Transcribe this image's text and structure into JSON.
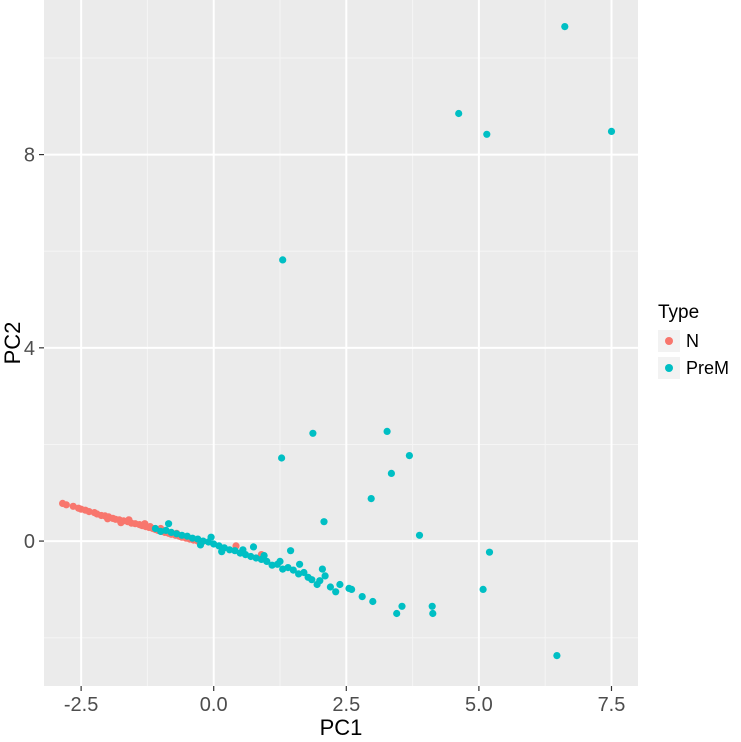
{
  "chart_data": {
    "type": "scatter",
    "title": "",
    "xlabel": "PC1",
    "ylabel": "PC2",
    "xlim": [
      -3.2,
      8.0
    ],
    "ylim": [
      -3.0,
      11.2
    ],
    "xticks": [
      -2.5,
      0.0,
      2.5,
      5.0,
      7.5
    ],
    "xtick_labels": [
      "-2.5",
      "0.0",
      "2.5",
      "5.0",
      "7.5"
    ],
    "yticks": [
      0,
      4,
      8
    ],
    "ytick_labels": [
      "0",
      "4",
      "8"
    ],
    "grid": true,
    "legend": {
      "title": "Type",
      "position": "right"
    },
    "series": [
      {
        "name": "N",
        "color": "#F8766D",
        "points": [
          [
            -2.85,
            0.78
          ],
          [
            -2.78,
            0.75
          ],
          [
            -2.65,
            0.72
          ],
          [
            -2.55,
            0.68
          ],
          [
            -2.5,
            0.66
          ],
          [
            -2.42,
            0.64
          ],
          [
            -2.35,
            0.61
          ],
          [
            -2.25,
            0.59
          ],
          [
            -2.2,
            0.56
          ],
          [
            -2.12,
            0.53
          ],
          [
            -2.05,
            0.52
          ],
          [
            -1.98,
            0.5
          ],
          [
            -1.9,
            0.47
          ],
          [
            -1.85,
            0.45
          ],
          [
            -1.78,
            0.44
          ],
          [
            -1.7,
            0.42
          ],
          [
            -1.62,
            0.4
          ],
          [
            -1.55,
            0.37
          ],
          [
            -1.48,
            0.36
          ],
          [
            -1.4,
            0.34
          ],
          [
            -1.35,
            0.32
          ],
          [
            -1.28,
            0.3
          ],
          [
            -1.22,
            0.28
          ],
          [
            -1.15,
            0.26
          ],
          [
            -1.1,
            0.24
          ],
          [
            -1.05,
            0.22
          ],
          [
            -0.98,
            0.2
          ],
          [
            -0.92,
            0.18
          ],
          [
            -0.85,
            0.16
          ],
          [
            -0.8,
            0.14
          ],
          [
            -0.72,
            0.12
          ],
          [
            -0.65,
            0.1
          ],
          [
            -0.6,
            0.08
          ],
          [
            -0.52,
            0.06
          ],
          [
            -0.45,
            0.04
          ],
          [
            -0.38,
            0.02
          ],
          [
            -0.3,
            0.0
          ],
          [
            -0.22,
            -0.02
          ],
          [
            -1.6,
            0.44
          ],
          [
            -1.3,
            0.36
          ],
          [
            -1.0,
            0.26
          ],
          [
            -0.7,
            0.16
          ],
          [
            0.42,
            -0.1
          ],
          [
            0.9,
            -0.28
          ],
          [
            -1.75,
            0.38
          ],
          [
            -2.0,
            0.46
          ],
          [
            -1.2,
            0.3
          ]
        ]
      },
      {
        "name": "PreM",
        "color": "#00BFC4",
        "points": [
          [
            6.62,
            10.65
          ],
          [
            4.62,
            8.85
          ],
          [
            5.15,
            8.42
          ],
          [
            7.5,
            8.48
          ],
          [
            1.3,
            5.82
          ],
          [
            1.87,
            2.23
          ],
          [
            3.27,
            2.27
          ],
          [
            3.69,
            1.77
          ],
          [
            1.28,
            1.72
          ],
          [
            3.35,
            1.4
          ],
          [
            2.97,
            0.88
          ],
          [
            2.08,
            0.4
          ],
          [
            3.88,
            0.12
          ],
          [
            5.2,
            -0.23
          ],
          [
            5.08,
            -1.0
          ],
          [
            4.12,
            -1.35
          ],
          [
            4.13,
            -1.5
          ],
          [
            3.55,
            -1.35
          ],
          [
            3.45,
            -1.5
          ],
          [
            6.47,
            -2.37
          ],
          [
            2.8,
            -1.15
          ],
          [
            3.0,
            -1.25
          ],
          [
            2.55,
            -0.98
          ],
          [
            2.38,
            -0.9
          ],
          [
            2.3,
            -1.05
          ],
          [
            2.2,
            -0.95
          ],
          [
            2.1,
            -0.72
          ],
          [
            2.0,
            -0.82
          ],
          [
            1.95,
            -0.9
          ],
          [
            1.85,
            -0.8
          ],
          [
            1.78,
            -0.75
          ],
          [
            1.7,
            -0.65
          ],
          [
            1.6,
            -0.68
          ],
          [
            1.5,
            -0.6
          ],
          [
            1.4,
            -0.55
          ],
          [
            1.3,
            -0.58
          ],
          [
            1.2,
            -0.48
          ],
          [
            1.1,
            -0.5
          ],
          [
            1.0,
            -0.42
          ],
          [
            0.9,
            -0.38
          ],
          [
            0.8,
            -0.35
          ],
          [
            0.7,
            -0.32
          ],
          [
            0.6,
            -0.28
          ],
          [
            0.5,
            -0.25
          ],
          [
            0.4,
            -0.2
          ],
          [
            0.3,
            -0.18
          ],
          [
            0.2,
            -0.14
          ],
          [
            0.1,
            -0.1
          ],
          [
            0.0,
            -0.06
          ],
          [
            -0.1,
            -0.02
          ],
          [
            -0.2,
            0.0
          ],
          [
            -0.3,
            0.04
          ],
          [
            -0.4,
            0.06
          ],
          [
            -0.5,
            0.1
          ],
          [
            -0.6,
            0.12
          ],
          [
            -0.7,
            0.15
          ],
          [
            -0.8,
            0.18
          ],
          [
            -0.9,
            0.22
          ],
          [
            -1.0,
            0.2
          ],
          [
            -1.1,
            0.26
          ],
          [
            -0.85,
            0.36
          ],
          [
            1.45,
            -0.2
          ],
          [
            2.05,
            -0.58
          ],
          [
            1.62,
            -0.48
          ],
          [
            0.75,
            -0.12
          ],
          [
            -0.05,
            0.08
          ],
          [
            0.55,
            -0.18
          ],
          [
            1.25,
            -0.42
          ],
          [
            2.6,
            -1.0
          ],
          [
            0.15,
            -0.22
          ],
          [
            -0.25,
            -0.08
          ],
          [
            0.95,
            -0.3
          ]
        ]
      }
    ]
  }
}
